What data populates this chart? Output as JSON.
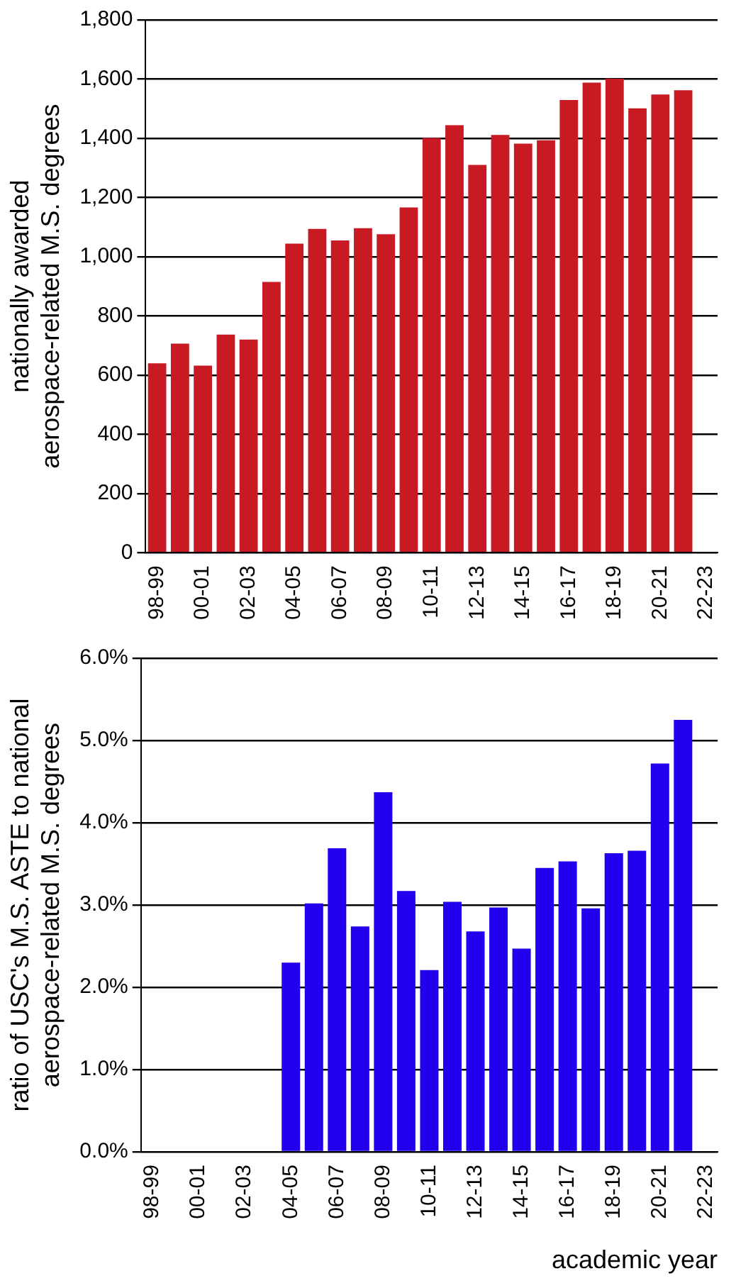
{
  "chart_data": [
    {
      "type": "bar",
      "ylabel": "nationally awarded\naerospace-related M.S. degrees",
      "categories": [
        "98-99",
        null,
        "00-01",
        null,
        "02-03",
        null,
        "04-05",
        null,
        "06-07",
        null,
        "08-09",
        null,
        "10-11",
        null,
        "12-13",
        null,
        "14-15",
        null,
        "16-17",
        null,
        "18-19",
        null,
        "20-21",
        null,
        "22-23"
      ],
      "values": [
        640,
        706,
        632,
        737,
        720,
        915,
        1044,
        1094,
        1055,
        1096,
        1076,
        1166,
        1401,
        1444,
        1310,
        1411,
        1382,
        1393,
        1529,
        1588,
        1601,
        1501,
        1548,
        1562,
        null
      ],
      "color": "#c81a22",
      "ylim": [
        0,
        1800
      ],
      "yticks": [
        0,
        {
          "value": 200,
          "label": "200"
        },
        400,
        600,
        800,
        {
          "value": 1000,
          "label": "1,000"
        },
        {
          "value": 1200,
          "label": "1,200"
        },
        {
          "value": 1400,
          "label": "1,400"
        },
        {
          "value": 1600,
          "label": "1,600"
        },
        {
          "value": 1800,
          "label": "1,800"
        }
      ],
      "grid": "y"
    },
    {
      "type": "bar",
      "ylabel": "ratio of USC's M.S. ASTE to national\naerospace-related M.S. degrees",
      "xlabel": "academic year",
      "categories": [
        "98-99",
        null,
        "00-01",
        null,
        "02-03",
        null,
        "04-05",
        null,
        "06-07",
        null,
        "08-09",
        null,
        "10-11",
        null,
        "12-13",
        null,
        "14-15",
        null,
        "16-17",
        null,
        "18-19",
        null,
        "20-21",
        null,
        "22-23"
      ],
      "values": [
        null,
        null,
        null,
        null,
        null,
        null,
        2.3,
        3.02,
        3.69,
        2.74,
        4.37,
        3.17,
        2.21,
        3.04,
        2.68,
        2.97,
        2.47,
        3.45,
        3.53,
        2.96,
        3.63,
        3.66,
        4.72,
        5.25,
        null
      ],
      "color": "#2200ee",
      "ylim": [
        0,
        6
      ],
      "yticks": [
        {
          "value": 0,
          "label": "0.0%"
        },
        {
          "value": 1,
          "label": "1.0%"
        },
        {
          "value": 2,
          "label": "2.0%"
        },
        {
          "value": 3,
          "label": "3.0%"
        },
        {
          "value": 4,
          "label": "4.0%"
        },
        {
          "value": 5,
          "label": "5.0%"
        },
        {
          "value": 6,
          "label": "6.0%"
        }
      ],
      "grid": "y"
    }
  ]
}
